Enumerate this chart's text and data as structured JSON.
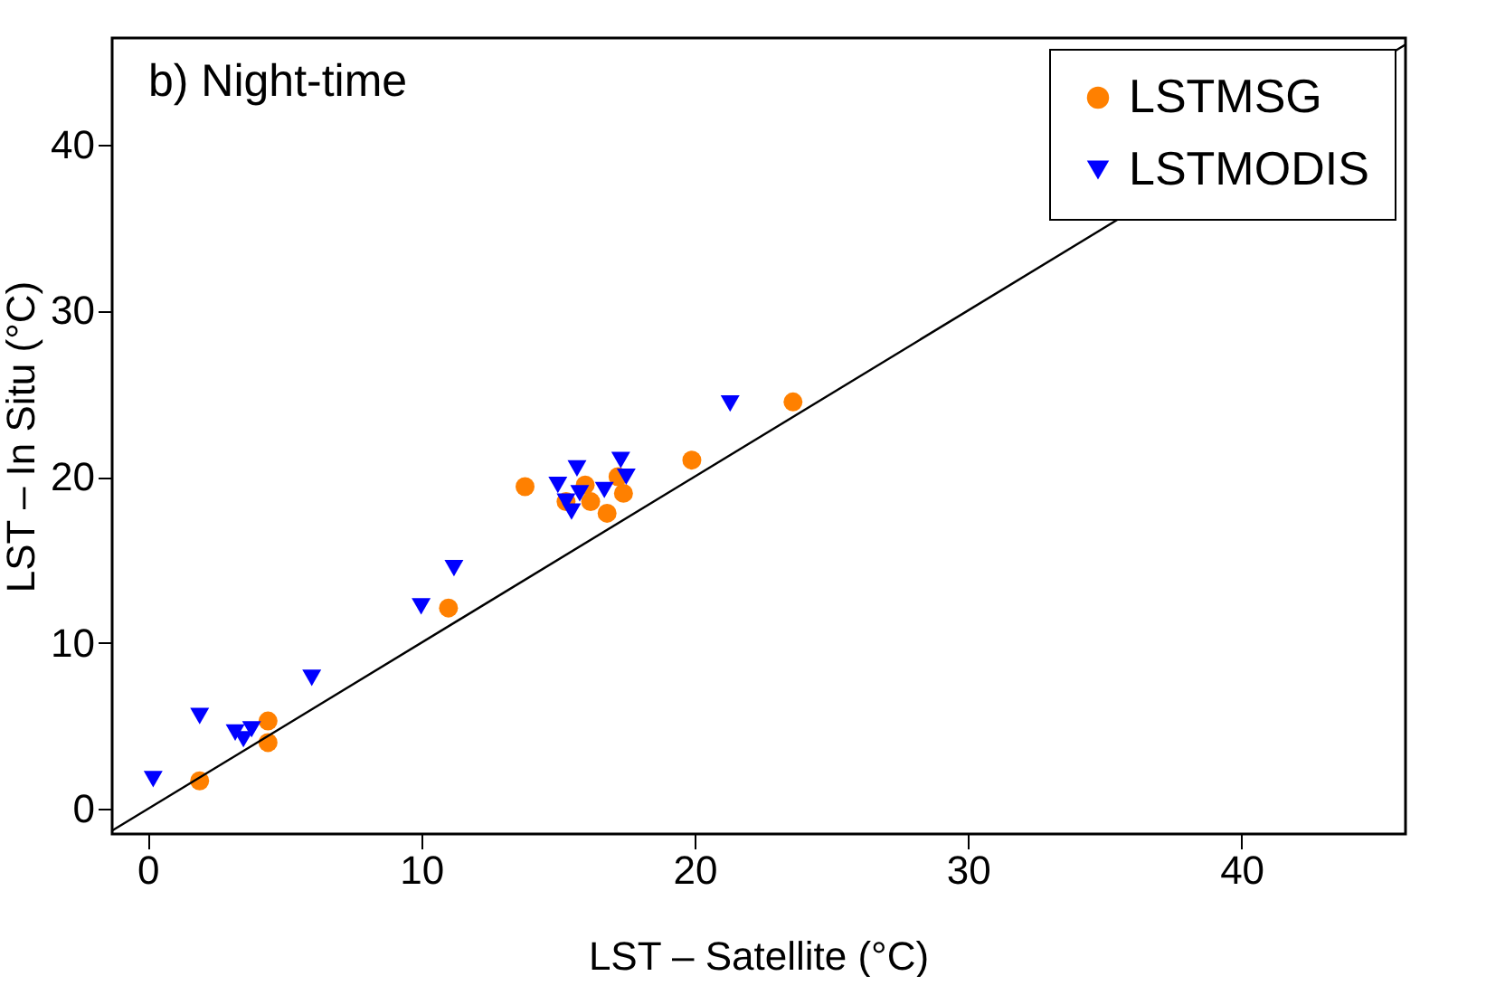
{
  "chart_data": {
    "type": "scatter",
    "xlabel": "LST – Satellite (°C)",
    "ylabel": "LST – In Situ (°C)",
    "annotations": [
      "b) Night-time"
    ],
    "xlim": [
      -1.3,
      46
    ],
    "ylim": [
      -1.5,
      46.4
    ],
    "xticks": [
      0,
      10,
      20,
      30,
      40
    ],
    "yticks": [
      0,
      10,
      20,
      30,
      40
    ],
    "grid": false,
    "legend": "top right",
    "series": [
      {
        "name": "LSTMSG",
        "color": "#ff8000",
        "marker": "circle",
        "x": [
          1.9,
          4.4,
          4.4,
          11,
          13.8,
          15.3,
          16,
          16.2,
          16.8,
          17.4,
          17.2,
          19.9,
          23.6
        ],
        "values": [
          1.7,
          4.0,
          5.3,
          12.1,
          19.4,
          18.5,
          19.5,
          18.5,
          17.8,
          19,
          20,
          21,
          24.5
        ]
      },
      {
        "name": "LSTMODIS",
        "color": "#0000ff",
        "marker": "triangle",
        "x": [
          0.2,
          1.9,
          3.2,
          3.5,
          3.8,
          6,
          10,
          11.2,
          15,
          15.3,
          15.5,
          15.7,
          15.8,
          16.7,
          17.3,
          17.5,
          21.3
        ],
        "values": [
          1.8,
          5.6,
          4.6,
          4.2,
          4.8,
          7.9,
          12.2,
          14.5,
          19.5,
          18.5,
          17.9,
          20.5,
          19,
          19.2,
          21,
          20,
          24.4
        ]
      },
      {
        "type": "line",
        "color": "#000000",
        "line_style": "solid",
        "x": [
          -1.3,
          46
        ],
        "values": [
          -1.3,
          46
        ]
      }
    ]
  }
}
